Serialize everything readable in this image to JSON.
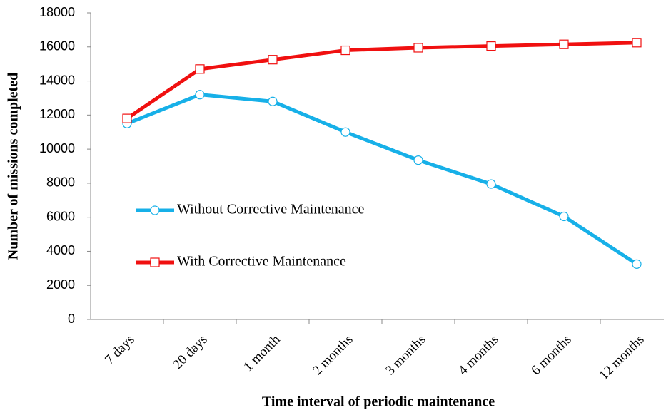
{
  "chart_data": {
    "type": "line",
    "x_label": "Time interval of periodic maintenance",
    "y_label": "Number of missions completed",
    "categories": [
      "7 days",
      "20 days",
      "1 month",
      "2 months",
      "3 months",
      "4 months",
      "6 months",
      "12 months"
    ],
    "series": [
      {
        "name": "Without Corrective Maintenance",
        "color": "#17b0e8",
        "marker": "circle",
        "values": [
          11500,
          13200,
          12800,
          11000,
          9350,
          7950,
          6050,
          3250
        ]
      },
      {
        "name": "With Corrective Maintenance",
        "color": "#f01010",
        "marker": "square",
        "values": [
          11800,
          14700,
          15250,
          15800,
          15950,
          16050,
          16150,
          16250
        ]
      }
    ],
    "ylim": [
      0,
      18000
    ],
    "yticks": [
      0,
      2000,
      4000,
      6000,
      8000,
      10000,
      12000,
      14000,
      16000,
      18000
    ],
    "grid": false
  }
}
